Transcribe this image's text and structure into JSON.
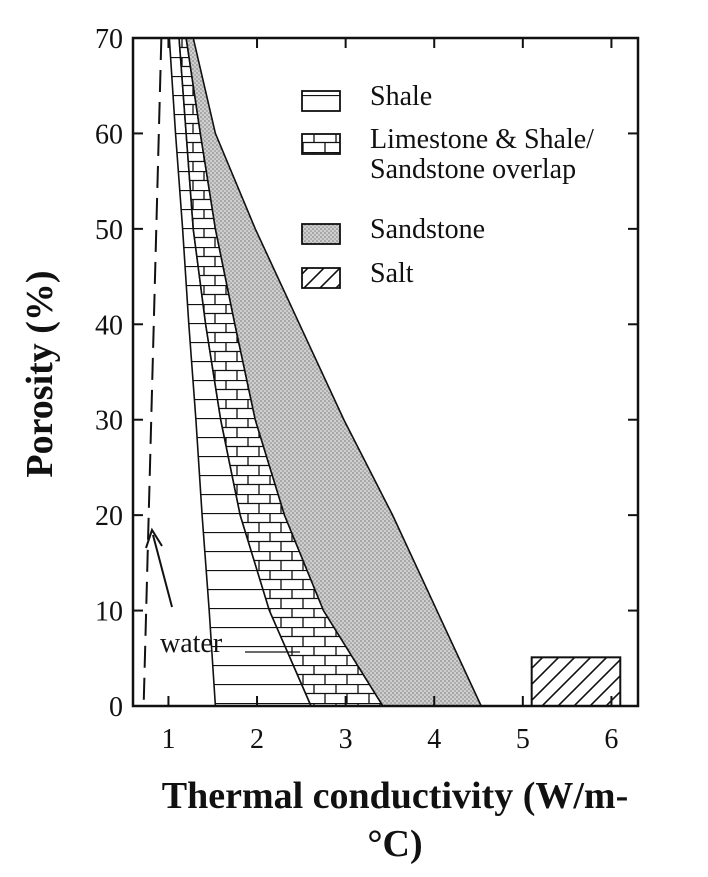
{
  "chart_data": {
    "type": "area",
    "x_label": "Thermal conductivity (W/m-°C)",
    "y_label": "Porosity (%)",
    "xlim": [
      0.6,
      6.3
    ],
    "ylim": [
      0,
      70
    ],
    "xticks": [
      1,
      2,
      3,
      4,
      5,
      6
    ],
    "yticks": [
      0,
      10,
      20,
      30,
      40,
      50,
      60,
      70
    ],
    "y": [
      0,
      10,
      20,
      30,
      40,
      50,
      60,
      70
    ],
    "series": [
      {
        "name": "Shale",
        "pattern": "horizontal",
        "color": "#111111",
        "lower": [
          1.53,
          1.46,
          1.38,
          1.31,
          1.23,
          1.16,
          1.08,
          1.01
        ],
        "upper": [
          2.61,
          2.14,
          1.81,
          1.59,
          1.42,
          1.28,
          1.2,
          1.12
        ]
      },
      {
        "name": "Limestone & Shale/ Sandstone overlap",
        "pattern": "brick",
        "color": "#111111",
        "lower": [
          2.61,
          2.14,
          1.81,
          1.59,
          1.42,
          1.28,
          1.2,
          1.12
        ],
        "upper": [
          3.42,
          2.75,
          2.31,
          1.98,
          1.75,
          1.53,
          1.36,
          1.2
        ]
      },
      {
        "name": "Sandstone",
        "pattern": "stipple",
        "color": "#b0b0b0",
        "lower": [
          3.42,
          2.75,
          2.31,
          1.98,
          1.75,
          1.53,
          1.36,
          1.2
        ],
        "upper": [
          4.53,
          4.03,
          3.53,
          2.98,
          2.48,
          1.98,
          1.53,
          1.28
        ]
      },
      {
        "name": "Salt",
        "pattern": "diagonal",
        "color": "#111111",
        "box_x": [
          5.1,
          6.1
        ],
        "box_y": [
          0,
          5.1
        ]
      }
    ],
    "water": {
      "x": [
        0.92,
        0.72
      ],
      "y": [
        70,
        0
      ],
      "label": "water"
    }
  }
}
